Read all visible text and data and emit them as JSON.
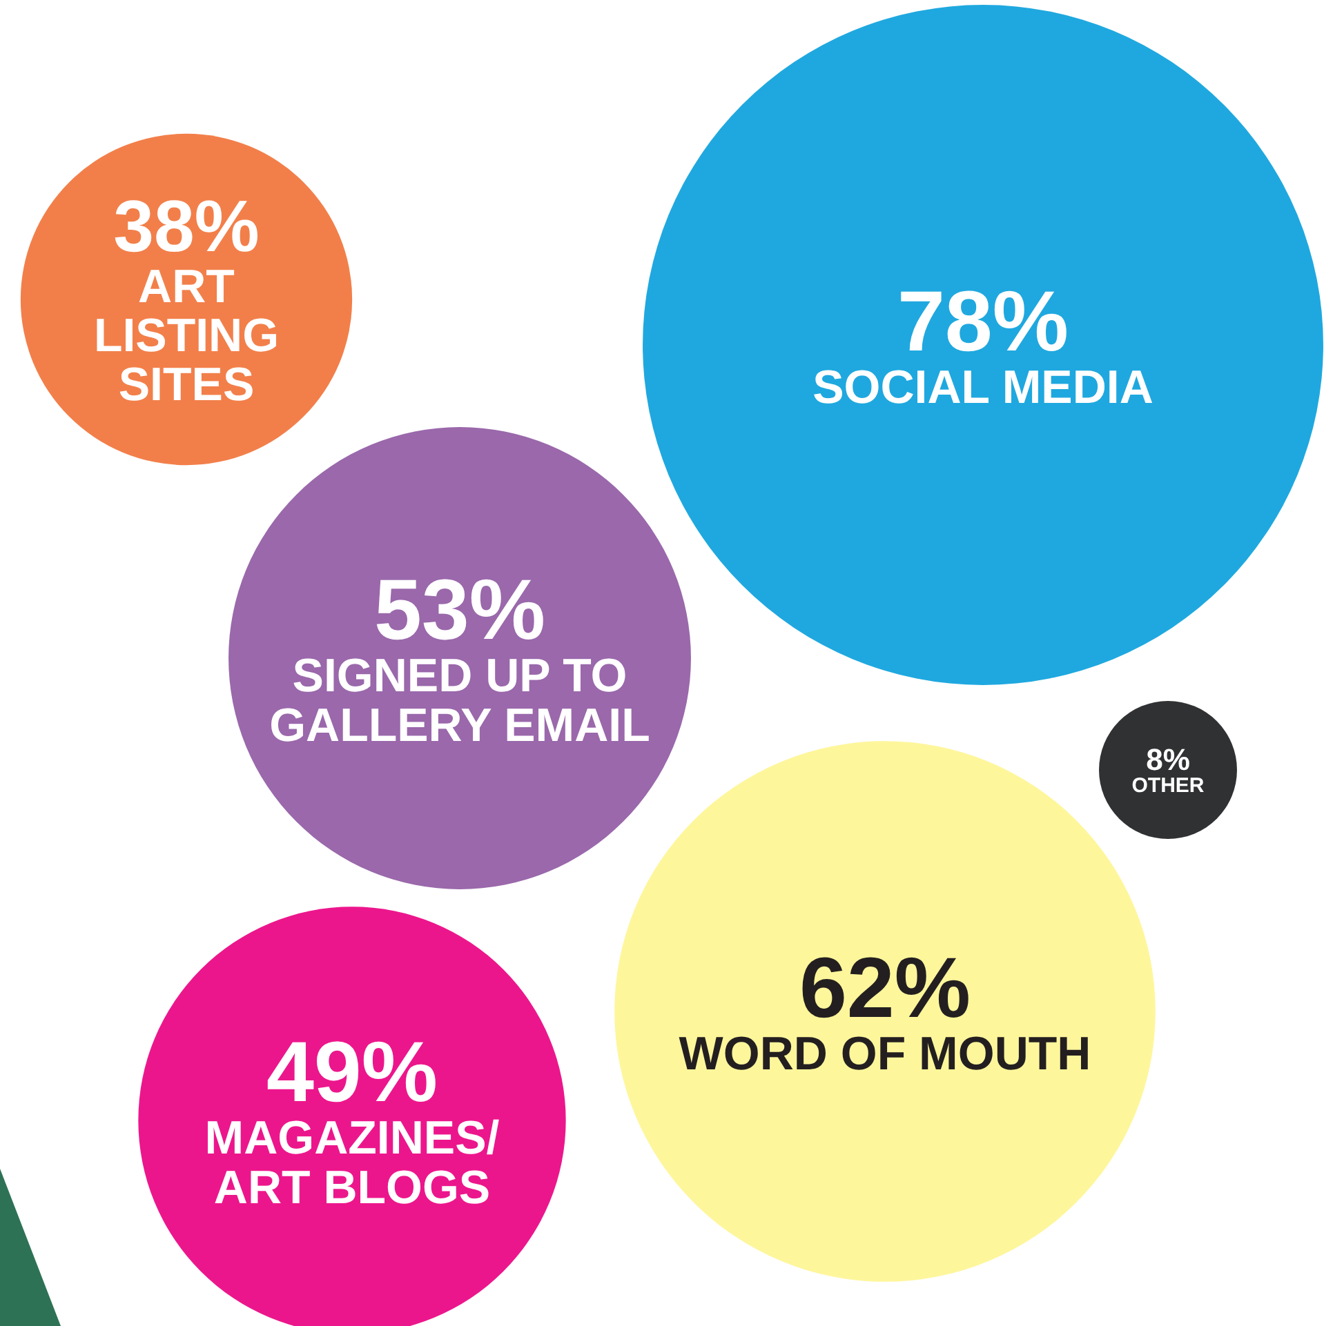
{
  "chart_data": {
    "type": "other",
    "categories": [
      "ART LISTING SITES",
      "SOCIAL MEDIA",
      "SIGNED UP TO GALLERY EMAIL",
      "OTHER",
      "WORD OF MOUTH",
      "MAGAZINES/ ART BLOGS"
    ],
    "values": [
      38,
      78,
      53,
      8,
      62,
      49
    ],
    "value_labels": [
      "38%",
      "78%",
      "53%",
      "8%",
      "62%",
      "49%"
    ],
    "colors": [
      "#f27f4a",
      "#1fa8df",
      "#9a68ab",
      "#2f3133",
      "#fef69b",
      "#ec168c"
    ]
  }
}
